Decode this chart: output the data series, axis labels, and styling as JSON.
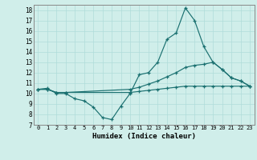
{
  "xlabel": "Humidex (Indice chaleur)",
  "xlim": [
    -0.5,
    23.5
  ],
  "ylim": [
    7,
    18.5
  ],
  "yticks": [
    7,
    8,
    9,
    10,
    11,
    12,
    13,
    14,
    15,
    16,
    17,
    18
  ],
  "xticks": [
    0,
    1,
    2,
    3,
    4,
    5,
    6,
    7,
    8,
    9,
    10,
    11,
    12,
    13,
    14,
    15,
    16,
    17,
    18,
    19,
    20,
    21,
    22,
    23
  ],
  "bg_color": "#d0eeea",
  "line_color": "#1a7070",
  "grid_color": "#b0dcda",
  "line1_x": [
    0,
    1,
    2,
    3,
    4,
    5,
    6,
    7,
    8,
    9,
    10,
    11,
    12,
    13,
    14,
    15,
    16,
    17,
    18,
    19,
    20,
    21,
    22,
    23
  ],
  "line1_y": [
    10.4,
    10.5,
    10.0,
    10.0,
    9.5,
    9.3,
    8.7,
    7.7,
    7.5,
    8.8,
    10.0,
    11.8,
    12.0,
    13.0,
    15.2,
    15.8,
    18.2,
    17.0,
    14.5,
    13.0,
    12.3,
    11.5,
    11.2,
    10.7
  ],
  "line2_x": [
    0,
    1,
    2,
    3,
    10,
    11,
    12,
    13,
    14,
    15,
    16,
    17,
    18,
    19,
    20,
    21,
    22,
    23
  ],
  "line2_y": [
    10.4,
    10.4,
    10.1,
    10.1,
    10.4,
    10.6,
    10.9,
    11.2,
    11.6,
    12.0,
    12.5,
    12.7,
    12.8,
    13.0,
    12.3,
    11.5,
    11.2,
    10.7
  ],
  "line3_x": [
    0,
    1,
    2,
    3,
    10,
    11,
    12,
    13,
    14,
    15,
    16,
    17,
    18,
    19,
    20,
    21,
    22,
    23
  ],
  "line3_y": [
    10.4,
    10.4,
    10.1,
    10.1,
    10.1,
    10.2,
    10.3,
    10.4,
    10.5,
    10.6,
    10.7,
    10.7,
    10.7,
    10.7,
    10.7,
    10.7,
    10.7,
    10.7
  ]
}
